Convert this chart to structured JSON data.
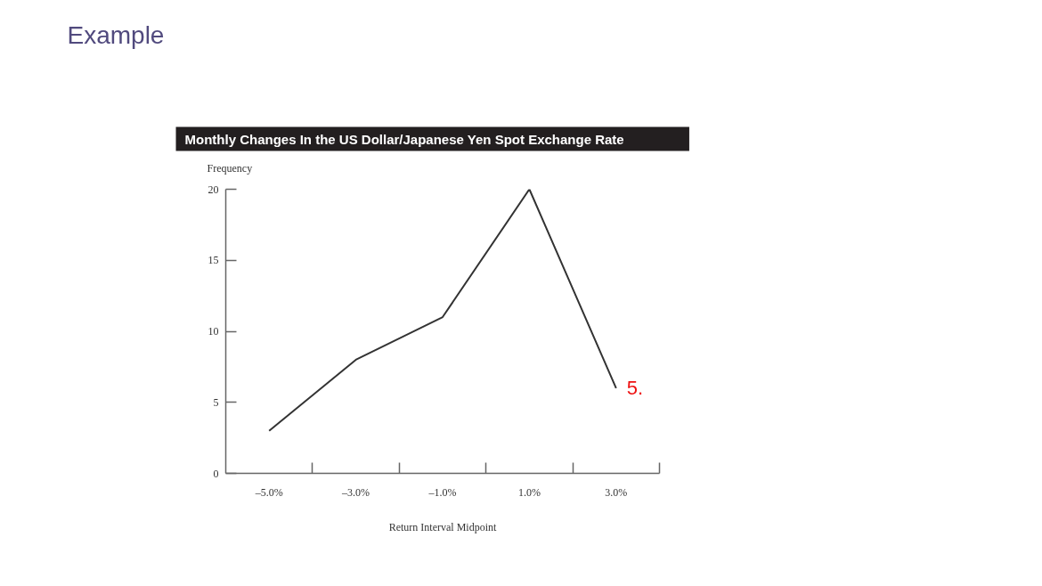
{
  "chart_data": {
    "type": "line",
    "title": "Monthly Changes In the US Dollar/Japanese Yen Spot Exchange Rate",
    "xlabel": "Return Interval Midpoint",
    "ylabel": "Frequency",
    "x": [
      -5,
      -3,
      -1,
      1,
      3
    ],
    "series": [
      {
        "color": "#333333",
        "values": [
          3,
          8,
          11,
          20,
          6
        ]
      }
    ],
    "xlim": [
      -6,
      4
    ],
    "xticks": [
      {
        "value": -5,
        "label": "–5.0%"
      },
      {
        "value": -4,
        "label": null
      },
      {
        "value": -3,
        "label": "–3.0%"
      },
      {
        "value": -2,
        "label": null
      },
      {
        "value": -1,
        "label": "–1.0%"
      },
      {
        "value": 0,
        "label": null
      },
      {
        "value": 1,
        "label": "1.0%"
      },
      {
        "value": 2,
        "label": null
      },
      {
        "value": 3,
        "label": "3.0%"
      },
      {
        "value": 4,
        "label": null
      }
    ],
    "ylim": [
      0,
      20
    ],
    "yticks": [
      0,
      5,
      10,
      15,
      20
    ],
    "grid": false,
    "marker": "none",
    "line_style": "solid",
    "annotations": [
      "Example",
      {
        "text": "5.",
        "x": 3,
        "y": 6
      }
    ]
  }
}
